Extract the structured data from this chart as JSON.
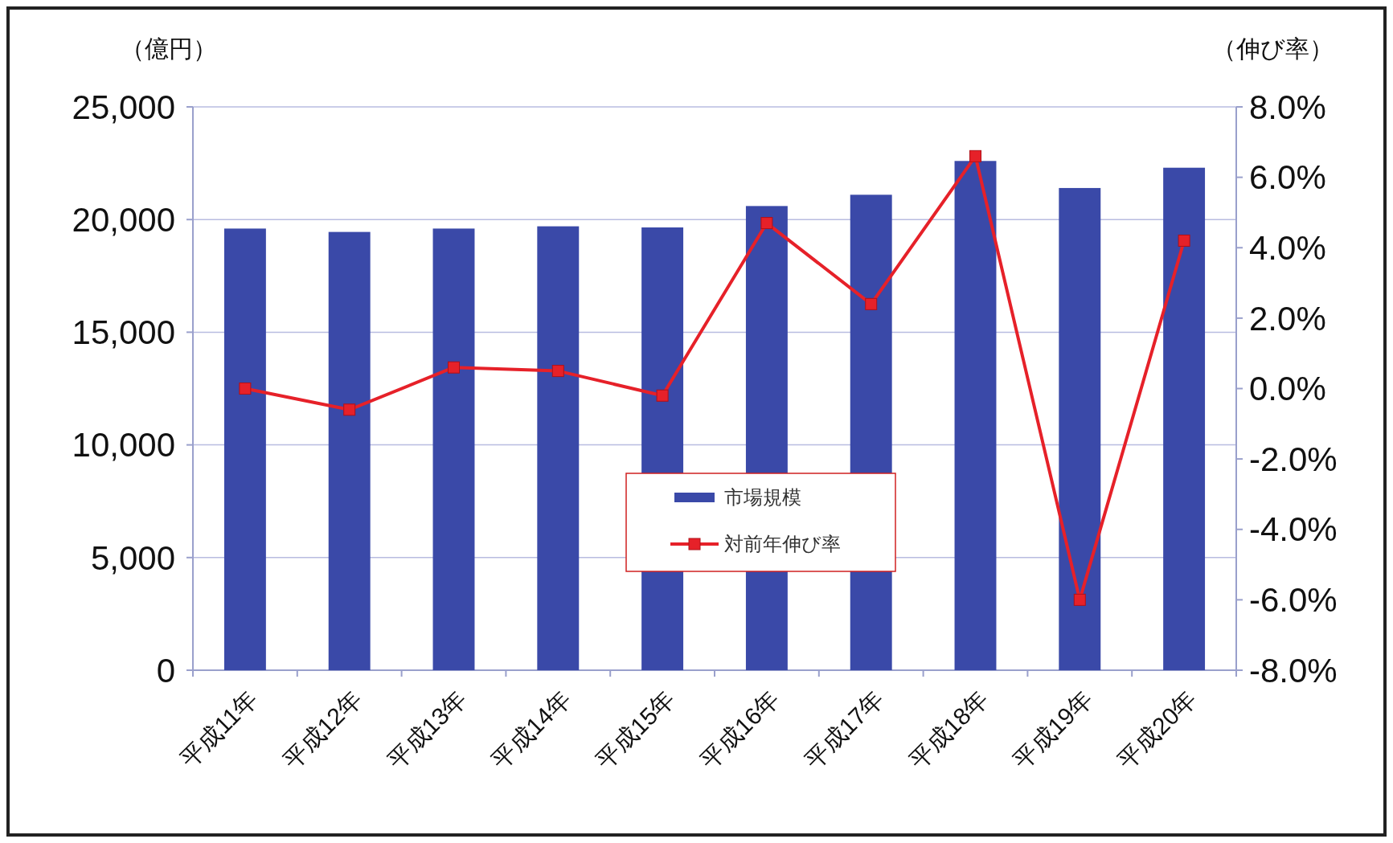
{
  "chart_data": {
    "type": "bar",
    "ylabel": "（億円）",
    "y2label": "（伸び率）",
    "categories": [
      "平成11年",
      "平成12年",
      "平成13年",
      "平成14年",
      "平成15年",
      "平成16年",
      "平成17年",
      "平成18年",
      "平成19年",
      "平成20年"
    ],
    "series": [
      {
        "name": "市場規模",
        "color": "#3a49a8",
        "values": [
          19600,
          19450,
          19600,
          19700,
          19650,
          20600,
          21100,
          22600,
          21400,
          22300
        ]
      },
      {
        "name": "対前年伸び率",
        "type": "line",
        "axis": "y2",
        "color": "#e62129",
        "marker": "square",
        "values": [
          0.0,
          -0.6,
          0.6,
          0.5,
          -0.2,
          4.7,
          2.4,
          6.6,
          -6.0,
          4.2
        ]
      }
    ],
    "ylim": [
      0,
      25000
    ],
    "yticks": [
      {
        "value": 0,
        "label": "0"
      },
      {
        "value": 5000,
        "label": "5,000"
      },
      {
        "value": 10000,
        "label": "10,000"
      },
      {
        "value": 15000,
        "label": "15,000"
      },
      {
        "value": 20000,
        "label": "20,000"
      },
      {
        "value": 25000,
        "label": "25,000"
      }
    ],
    "y2lim": [
      -8,
      8
    ],
    "y2ticks": [
      {
        "value": -8,
        "label": "-8.0%"
      },
      {
        "value": -6,
        "label": "-6.0%"
      },
      {
        "value": -4,
        "label": "-4.0%"
      },
      {
        "value": -2,
        "label": "-2.0%"
      },
      {
        "value": 0,
        "label": "0.0%"
      },
      {
        "value": 2,
        "label": "2.0%"
      },
      {
        "value": 4,
        "label": "4.0%"
      },
      {
        "value": 6,
        "label": "6.0%"
      },
      {
        "value": 8,
        "label": "8.0%"
      }
    ],
    "grid": "y",
    "legend": "bottom"
  }
}
